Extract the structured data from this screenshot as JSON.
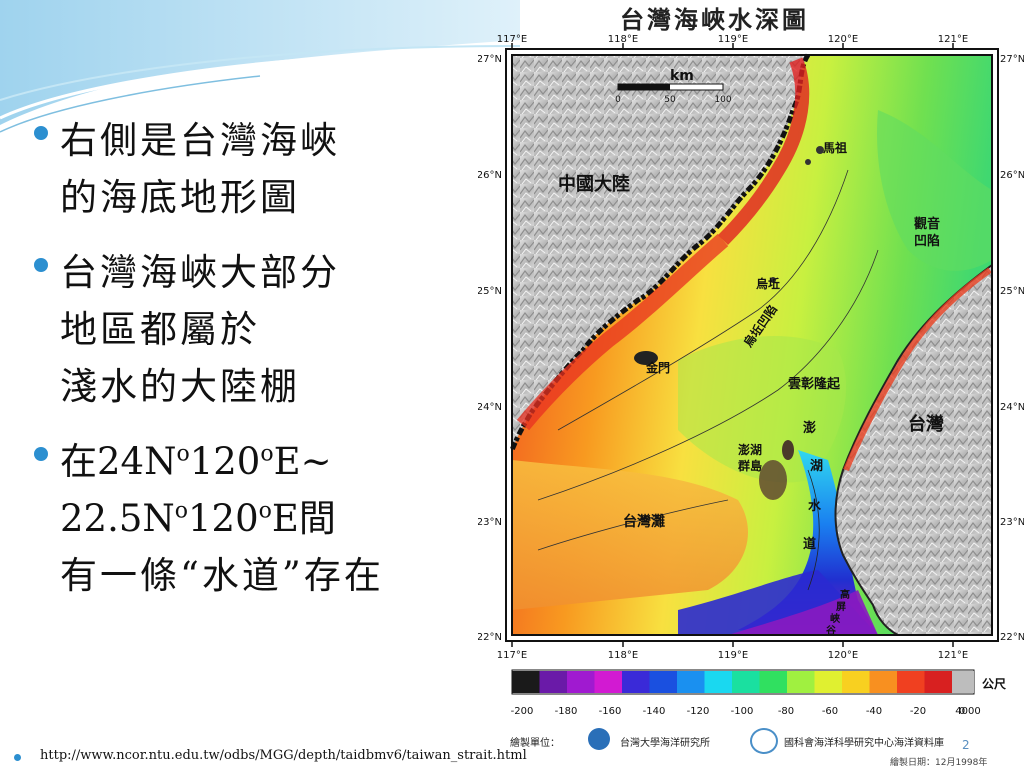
{
  "bullets": [
    {
      "lines": [
        "右側是台灣海峽",
        "的海底地形圖"
      ]
    },
    {
      "lines": [
        "台灣海峽大部分",
        "地區都屬於",
        "淺水的大陸棚"
      ]
    }
  ],
  "bullet3": {
    "line1_prefix": "在24N",
    "sup1": "o",
    "line1_mid": "120",
    "sup2": "o",
    "line1_suffix": "E~",
    "line2_prefix": "22.5N",
    "sup3": "o",
    "line2_mid": "120",
    "sup4": "o",
    "line2_suffix": "E間",
    "line3": "有一條“水道”存在"
  },
  "map": {
    "title": "台灣海峽水深圖",
    "lon_labels": [
      "117°E",
      "118°E",
      "119°E",
      "120°E",
      "121°E"
    ],
    "lat_labels": [
      "27°N",
      "26°N",
      "25°N",
      "24°N",
      "23°N",
      "22°N"
    ],
    "scale": {
      "unit": "km",
      "ticks": [
        "0",
        "50",
        "100"
      ]
    },
    "places": {
      "china": "中國大陸",
      "taiwan": "台灣",
      "matsu": "馬祖",
      "wuqiu": "烏坵",
      "wuqiu_depression": "烏坵凹陷",
      "guanyin_1": "觀音",
      "guanyin_2": "凹陷",
      "kinmen": "金門",
      "changyun": "雲彰隆起",
      "penghu_1": "澎湖",
      "penghu_2": "群島",
      "channel_1": "澎",
      "channel_2": "湖",
      "channel_3": "水",
      "channel_4": "道",
      "taiwan_bank": "台灣灘",
      "gaoping_1": "高",
      "gaoping_2": "屏",
      "gaoping_3": "峽",
      "gaoping_4": "谷"
    },
    "legend": {
      "unit": "公尺",
      "ticks": [
        "-200",
        "-180",
        "-160",
        "-140",
        "-120",
        "-100",
        "-80",
        "-60",
        "-40",
        "-20",
        "0",
        "4000"
      ],
      "colors": [
        "#1a1a1a",
        "#6a1aa8",
        "#a01ad0",
        "#d21ad2",
        "#3a2ad8",
        "#1a50e0",
        "#1a90f0",
        "#1ad8f0",
        "#1ae0a0",
        "#30e060",
        "#a0f040",
        "#e0f030",
        "#f8d020",
        "#f89020",
        "#f04020",
        "#d82020"
      ]
    },
    "credits": {
      "unit_label": "繪製單位：",
      "org1": "台灣大學海洋研究所",
      "org2": "國科會海洋科學研究中心海洋資料庫",
      "date": "繪製日期：12月1998年"
    }
  },
  "footer": {
    "url": "http://www.ncor.ntu.edu.tw/odbs/MGG/depth/taidbmv6/taiwan_strait.html",
    "page_number": "2"
  }
}
